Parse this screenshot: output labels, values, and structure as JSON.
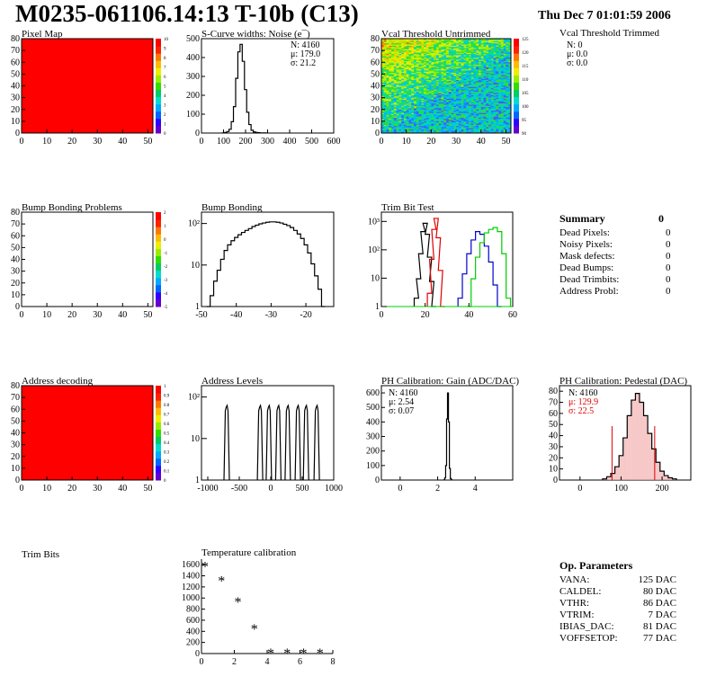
{
  "title": "M0235-061106.14:13 T-10b (C13)",
  "datestamp": "Thu Dec  7 01:01:59 2006",
  "panels": {
    "pixel_map": {
      "title": "Pixel Map",
      "xticks": [
        "0",
        "10",
        "20",
        "30",
        "40",
        "50"
      ],
      "yticks": [
        "0",
        "10",
        "20",
        "30",
        "40",
        "50",
        "60",
        "70",
        "80"
      ],
      "zticks": [
        "0",
        "1",
        "2",
        "3",
        "4",
        "5",
        "6",
        "7",
        "8",
        "9",
        "10"
      ]
    },
    "scurve": {
      "title": "S-Curve widths: Noise (e¯)",
      "xticks": [
        "0",
        "100",
        "200",
        "300",
        "400",
        "500",
        "600"
      ],
      "yticks": [
        "0",
        "100",
        "200",
        "300",
        "400",
        "500"
      ],
      "stats": [
        "N: 4160",
        "μ: 179.0",
        "σ: 21.2"
      ]
    },
    "vcal_untrimmed": {
      "title": "Vcal Threshold Untrimmed",
      "xticks": [
        "0",
        "10",
        "20",
        "30",
        "40",
        "50"
      ],
      "yticks": [
        "0",
        "10",
        "20",
        "30",
        "40",
        "50",
        "60",
        "70",
        "80"
      ],
      "zticks": [
        "90",
        "95",
        "100",
        "105",
        "110",
        "115",
        "120",
        "125"
      ]
    },
    "vcal_trimmed": {
      "title": "Vcal Threshold Trimmed",
      "stats": [
        "N:    0",
        "μ:  0.0",
        "σ:  0.0"
      ]
    },
    "bump_problems": {
      "title": "Bump Bonding Problems",
      "xticks": [
        "0",
        "10",
        "20",
        "30",
        "40",
        "50"
      ],
      "yticks": [
        "0",
        "10",
        "20",
        "30",
        "40",
        "50",
        "60",
        "70",
        "80"
      ],
      "zticks": [
        "-5",
        "-4",
        "-3",
        "-2",
        "-1",
        "0",
        "1",
        "2"
      ]
    },
    "bump_bonding": {
      "title": "Bump Bonding",
      "xticks": [
        "-50",
        "-40",
        "-30",
        "-20"
      ],
      "yticks": [
        "1",
        "10",
        "10²"
      ]
    },
    "trim_bit": {
      "title": "Trim Bit Test",
      "xticks": [
        "0",
        "20",
        "40",
        "60"
      ],
      "yticks": [
        "1",
        "10",
        "10²",
        "10³"
      ]
    },
    "address_decoding": {
      "title": "Address decoding",
      "xticks": [
        "0",
        "10",
        "20",
        "30",
        "40",
        "50"
      ],
      "yticks": [
        "0",
        "10",
        "20",
        "30",
        "40",
        "50",
        "60",
        "70",
        "80"
      ],
      "zticks": [
        "0",
        "0.1",
        "0.2",
        "0.3",
        "0.4",
        "0.5",
        "0.6",
        "0.7",
        "0.8",
        "0.9",
        "1"
      ]
    },
    "address_levels": {
      "title": "Address Levels",
      "xticks": [
        "-1000",
        "-500",
        "0",
        "500",
        "1000"
      ],
      "yticks": [
        "1",
        "10",
        "10²"
      ]
    },
    "ph_gain": {
      "title": "PH Calibration: Gain (ADC/DAC)",
      "xticks": [
        "0",
        "2",
        "4"
      ],
      "yticks": [
        "0",
        "100",
        "200",
        "300",
        "400",
        "500",
        "600"
      ],
      "stats": [
        "N: 4160",
        "μ: 2.54",
        "σ: 0.07"
      ]
    },
    "ph_pedestal": {
      "title": "PH Calibration: Pedestal (DAC)",
      "xticks": [
        "0",
        "100",
        "200"
      ],
      "yticks": [
        "0",
        "10",
        "20",
        "30",
        "40",
        "50",
        "60",
        "70",
        "80"
      ],
      "stats": [
        "N: 4160",
        "μ: 129.9",
        "σ: 22.5"
      ]
    },
    "trim_bits": {
      "title": "Trim Bits"
    },
    "temperature": {
      "title": "Temperature calibration",
      "xticks": [
        "0",
        "2",
        "4",
        "6",
        "8"
      ],
      "yticks": [
        "0",
        "200",
        "400",
        "600",
        "800",
        "1000",
        "1200",
        "1400",
        "1600"
      ]
    }
  },
  "summary": {
    "heading": "Summary",
    "total": "0",
    "rows": [
      {
        "label": "Dead Pixels:",
        "value": "0"
      },
      {
        "label": "Noisy Pixels:",
        "value": "0"
      },
      {
        "label": "Mask defects:",
        "value": "0"
      },
      {
        "label": "Dead Bumps:",
        "value": "0"
      },
      {
        "label": "Dead Trimbits:",
        "value": "0"
      },
      {
        "label": "Address Probl:",
        "value": "0"
      }
    ]
  },
  "op_parameters": {
    "heading": "Op. Parameters",
    "rows": [
      {
        "label": "VANA:",
        "value": "125 DAC"
      },
      {
        "label": "CALDEL:",
        "value": "80 DAC"
      },
      {
        "label": "VTHR:",
        "value": "86 DAC"
      },
      {
        "label": "VTRIM:",
        "value": "7 DAC"
      },
      {
        "label": "IBIAS_DAC:",
        "value": "81 DAC"
      },
      {
        "label": "VOFFSETOP:",
        "value": "77 DAC"
      }
    ]
  },
  "colors": {
    "map_red": "#ff0000",
    "trim_red": "#e00000",
    "trim_blue": "#0000cc",
    "trim_green": "#00cc00",
    "stat_red": "#dd0000"
  },
  "chart_data": [
    {
      "type": "heatmap",
      "title": "Pixel Map",
      "xlim": [
        0,
        52
      ],
      "ylim": [
        0,
        80
      ],
      "zlim": [
        0,
        10
      ],
      "uniform_value": 10
    },
    {
      "type": "bar",
      "title": "S-Curve widths: Noise (e¯)",
      "xlim": [
        0,
        600
      ],
      "ylim": [
        0,
        500
      ],
      "x": [
        100,
        110,
        120,
        130,
        140,
        150,
        160,
        170,
        180,
        190,
        200,
        210,
        220,
        230,
        240,
        250,
        260,
        270,
        280,
        290
      ],
      "values": [
        1,
        3,
        8,
        20,
        60,
        140,
        290,
        430,
        470,
        380,
        230,
        110,
        45,
        15,
        6,
        3,
        2,
        1,
        1,
        1
      ]
    },
    {
      "type": "heatmap",
      "title": "Vcal Threshold Untrimmed",
      "xlim": [
        0,
        52
      ],
      "ylim": [
        0,
        80
      ],
      "zlim": [
        88,
        127
      ]
    },
    {
      "type": "heatmap",
      "title": "Bump Bonding Problems",
      "xlim": [
        0,
        52
      ],
      "ylim": [
        0,
        80
      ],
      "zlim": [
        -5,
        2
      ]
    },
    {
      "type": "bar",
      "title": "Bump Bonding",
      "log_y": true,
      "xlim": [
        -50,
        -12
      ],
      "x": [
        -48,
        -47,
        -46,
        -45,
        -44,
        -43,
        -42,
        -41,
        -40,
        -39,
        -38,
        -37,
        -36,
        -35,
        -34,
        -33,
        -32,
        -31,
        -30,
        -29,
        -28,
        -27,
        -26,
        -25,
        -24,
        -23,
        -22,
        -21,
        -20,
        -19,
        -18,
        -17,
        -16,
        -15
      ],
      "values": [
        1,
        2,
        5,
        10,
        20,
        35,
        50,
        65,
        80,
        95,
        110,
        125,
        140,
        160,
        175,
        190,
        200,
        210,
        215,
        215,
        210,
        200,
        185,
        170,
        150,
        125,
        100,
        75,
        50,
        30,
        15,
        7,
        3,
        1
      ]
    },
    {
      "type": "line",
      "title": "Trim Bit Test",
      "log_y": true,
      "xlim": [
        0,
        60
      ],
      "series": [
        {
          "color": "#000000",
          "x": [
            16,
            17,
            18,
            19,
            20,
            21,
            22,
            23,
            24
          ],
          "values": [
            2,
            10,
            80,
            500,
            1000,
            400,
            60,
            8,
            1
          ]
        },
        {
          "color": "#e00000",
          "x": [
            22,
            23,
            24,
            25,
            26,
            27,
            28
          ],
          "values": [
            3,
            50,
            600,
            1500,
            300,
            20,
            1
          ]
        },
        {
          "color": "#0000cc",
          "x": [
            36,
            38,
            40,
            42,
            44,
            46,
            48,
            50,
            52,
            54
          ],
          "values": [
            2,
            15,
            80,
            250,
            500,
            400,
            150,
            40,
            6,
            1
          ]
        },
        {
          "color": "#00cc00",
          "x": [
            40,
            42,
            44,
            46,
            48,
            50,
            52,
            54,
            56,
            58
          ],
          "values": [
            1,
            10,
            60,
            200,
            450,
            600,
            700,
            500,
            80,
            2
          ]
        }
      ]
    },
    {
      "type": "heatmap",
      "title": "Address decoding",
      "xlim": [
        0,
        52
      ],
      "ylim": [
        0,
        80
      ],
      "zlim": [
        0,
        1
      ],
      "uniform_value": 1
    },
    {
      "type": "bar",
      "title": "Address Levels",
      "log_y": true,
      "xlim": [
        -1100,
        1000
      ],
      "x": [
        -700,
        -170,
        -30,
        120,
        270,
        430,
        560,
        730
      ],
      "values": [
        150,
        150,
        150,
        150,
        150,
        150,
        150,
        150
      ]
    },
    {
      "type": "bar",
      "title": "PH Calibration: Gain (ADC/DAC)",
      "xlim": [
        -1,
        6
      ],
      "ylim": [
        0,
        650
      ],
      "x": [
        2.35,
        2.4,
        2.45,
        2.5,
        2.55,
        2.6,
        2.65,
        2.7,
        2.75
      ],
      "values": [
        1,
        15,
        100,
        420,
        600,
        400,
        80,
        10,
        1
      ]
    },
    {
      "type": "bar",
      "title": "PH Calibration: Pedestal (DAC)",
      "xlim": [
        -50,
        270
      ],
      "ylim": [
        0,
        85
      ],
      "x": [
        60,
        70,
        80,
        90,
        100,
        110,
        120,
        130,
        140,
        150,
        160,
        170,
        180,
        190,
        200,
        210,
        220,
        230
      ],
      "values": [
        1,
        3,
        6,
        12,
        22,
        38,
        58,
        72,
        78,
        70,
        58,
        42,
        28,
        16,
        8,
        4,
        2,
        1
      ]
    },
    {
      "type": "scatter",
      "title": "Temperature calibration",
      "xlim": [
        0,
        8
      ],
      "ylim": [
        0,
        1700
      ],
      "x": [
        0,
        1,
        2,
        3,
        4,
        5,
        6,
        7
      ],
      "values": [
        1560,
        1300,
        920,
        440,
        0,
        0,
        0,
        0
      ]
    }
  ]
}
